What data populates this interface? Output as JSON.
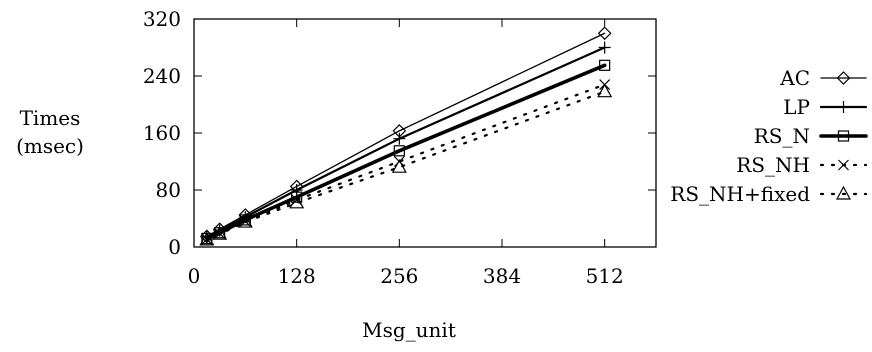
{
  "chart_data": {
    "type": "line",
    "xlabel": "Msg_unit",
    "ylabel_line1": "Times",
    "ylabel_line2": "(msec)",
    "xlim": [
      0,
      576
    ],
    "ylim": [
      0,
      320
    ],
    "xticks": [
      0,
      128,
      256,
      384,
      512
    ],
    "yticks": [
      0,
      80,
      160,
      240,
      320
    ],
    "grid": false,
    "legend_position": "right",
    "x": [
      16,
      32,
      64,
      128,
      256,
      512
    ],
    "series": [
      {
        "name": "AC",
        "marker": "diamond",
        "line": "solid-thin",
        "values": [
          15,
          25,
          45,
          85,
          163,
          300
        ]
      },
      {
        "name": "LP",
        "marker": "plus",
        "line": "solid-medium",
        "values": [
          14,
          23,
          42,
          80,
          152,
          280
        ]
      },
      {
        "name": "RS_N",
        "marker": "square",
        "line": "solid-thick",
        "values": [
          12,
          20,
          38,
          70,
          135,
          255
        ]
      },
      {
        "name": "RS_NH",
        "marker": "cross",
        "line": "dotted",
        "values": [
          11,
          19,
          36,
          66,
          120,
          228
        ]
      },
      {
        "name": "RS_NH+fixed",
        "marker": "triangle",
        "line": "dotted",
        "values": [
          10,
          18,
          35,
          62,
          112,
          218
        ]
      }
    ]
  }
}
